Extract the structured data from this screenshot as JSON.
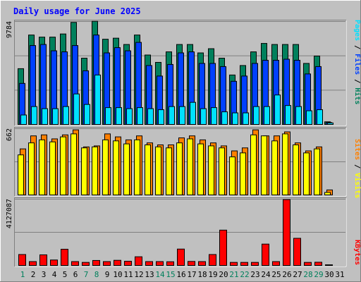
{
  "colors": {
    "frame_bg": "#C0C0C0",
    "border_light": "#FFFFFF",
    "border_dark": "#808080",
    "title": "#0000FF",
    "hits": "#00805C",
    "files": "#0040FF",
    "pages": "#00E0FF",
    "visits": "#FFFF00",
    "sites": "#FF8000",
    "kbytes": "#FF0000",
    "day_weekday": "#000000",
    "day_weekend": "#00805C",
    "label_dark": "#000000"
  },
  "chart_data": [
    {
      "type": "bar",
      "title": "Daily usage for June 2025",
      "panel": "hits-files-pages",
      "ymax_label": "9784",
      "ymax": 9784,
      "categories": [
        "1",
        "2",
        "3",
        "4",
        "5",
        "6",
        "7",
        "8",
        "9",
        "10",
        "11",
        "12",
        "13",
        "14",
        "15",
        "16",
        "17",
        "18",
        "19",
        "20",
        "21",
        "22",
        "23",
        "24",
        "25",
        "26",
        "27",
        "28",
        "29",
        "30",
        "31"
      ],
      "weekend": [
        "1",
        "7",
        "8",
        "14",
        "15",
        "21",
        "22",
        "28",
        "29"
      ],
      "legend": [
        "Pages",
        "Files",
        "Hits"
      ],
      "series": [
        {
          "name": "Hits",
          "values": [
            5300,
            8500,
            8300,
            8300,
            8600,
            9700,
            6300,
            9800,
            8100,
            8200,
            7600,
            8500,
            6600,
            5900,
            6900,
            7600,
            7600,
            6800,
            7200,
            6300,
            4700,
            5600,
            6900,
            7700,
            7600,
            7600,
            7600,
            5800,
            6500,
            250,
            0
          ]
        },
        {
          "name": "Files",
          "values": [
            3900,
            7500,
            7600,
            7000,
            6900,
            7500,
            5100,
            8500,
            6800,
            7300,
            7000,
            7800,
            5600,
            4600,
            5700,
            6800,
            6900,
            5800,
            5800,
            5500,
            4100,
            4600,
            5800,
            6100,
            6100,
            6200,
            6100,
            4800,
            5500,
            180,
            0
          ]
        },
        {
          "name": "Pages",
          "values": [
            900,
            1700,
            1500,
            1500,
            1700,
            2900,
            1900,
            4700,
            1600,
            1600,
            1500,
            1600,
            1500,
            1400,
            1700,
            1700,
            2100,
            1500,
            1600,
            1200,
            1100,
            1100,
            1700,
            1700,
            2800,
            1800,
            1700,
            1300,
            1400,
            140,
            0
          ]
        }
      ]
    },
    {
      "type": "bar",
      "panel": "visits-sites",
      "ymax_label": "662",
      "ymax": 662,
      "legend": [
        "Sites",
        "Visits"
      ],
      "series": [
        {
          "name": "Visits",
          "values": [
            400,
            520,
            550,
            530,
            580,
            610,
            470,
            480,
            550,
            540,
            510,
            550,
            500,
            480,
            470,
            520,
            560,
            510,
            490,
            470,
            380,
            420,
            600,
            590,
            540,
            610,
            500,
            420,
            460,
            25,
            0
          ]
        },
        {
          "name": "Sites",
          "values": [
            460,
            590,
            600,
            560,
            600,
            650,
            480,
            490,
            610,
            580,
            550,
            590,
            520,
            500,
            500,
            570,
            590,
            550,
            520,
            490,
            440,
            470,
            650,
            590,
            590,
            630,
            520,
            440,
            480,
            50,
            0
          ]
        }
      ]
    },
    {
      "type": "bar",
      "panel": "kbytes",
      "ymax_label": "4127087",
      "ymax": 4127087,
      "legend": [
        "KBytes"
      ],
      "series": [
        {
          "name": "KBytes",
          "values": [
            680000,
            240000,
            660000,
            340000,
            1010000,
            240000,
            190000,
            310000,
            240000,
            320000,
            260000,
            540000,
            240000,
            240000,
            230000,
            1020000,
            250000,
            240000,
            680000,
            2200000,
            190000,
            190000,
            190000,
            1330000,
            240000,
            4100000,
            1690000,
            190000,
            200000,
            40000,
            0
          ]
        }
      ]
    }
  ]
}
